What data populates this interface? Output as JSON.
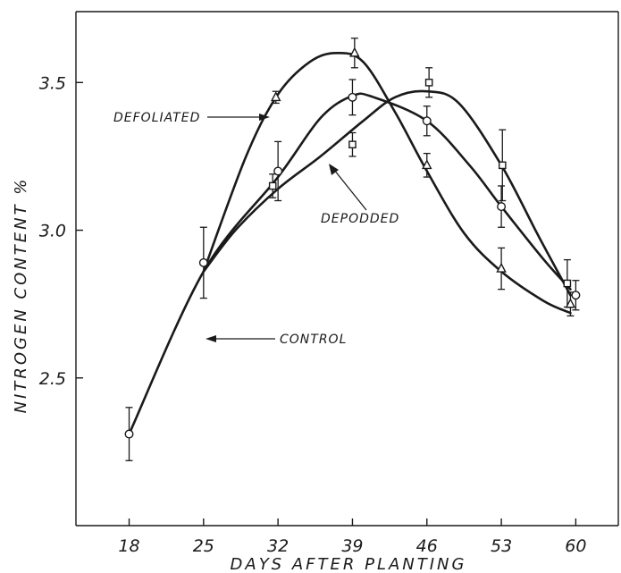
{
  "chart_data": {
    "type": "line",
    "xlabel": "DAYS AFTER PLANTING",
    "ylabel": "NITROGEN CONTENT %",
    "xlim": [
      13,
      64
    ],
    "ylim": [
      2.0,
      3.74
    ],
    "x_ticks": [
      18,
      25,
      32,
      39,
      46,
      53,
      60
    ],
    "y_ticks": [
      2.5,
      3.0,
      3.5
    ],
    "y_tick_labels": [
      "2.5",
      "3.0",
      "3.5"
    ],
    "grid": false,
    "series": [
      {
        "name": "CONTROL",
        "marker": "circle",
        "points": [
          {
            "x": 18,
            "y": 2.31,
            "err": 0.09
          },
          {
            "x": 25,
            "y": 2.89,
            "err": 0.12
          },
          {
            "x": 32,
            "y": 3.2,
            "err": 0.1
          },
          {
            "x": 39,
            "y": 3.45,
            "err": 0.06
          },
          {
            "x": 46,
            "y": 3.37,
            "err": 0.05
          },
          {
            "x": 53,
            "y": 3.08,
            "err": 0.07
          },
          {
            "x": 60,
            "y": 2.78,
            "err": 0.05
          }
        ],
        "curve": [
          [
            18,
            2.31
          ],
          [
            25,
            2.86
          ],
          [
            32,
            3.18
          ],
          [
            36,
            3.38
          ],
          [
            39,
            3.455
          ],
          [
            41,
            3.45
          ],
          [
            46,
            3.37
          ],
          [
            50,
            3.22
          ],
          [
            53,
            3.08
          ],
          [
            57,
            2.9
          ],
          [
            59.5,
            2.8
          ]
        ]
      },
      {
        "name": "DEFOLIATED",
        "marker": "triangle",
        "points": [
          {
            "x": 31.8,
            "y": 3.45,
            "err": 0.02
          },
          {
            "x": 39.2,
            "y": 3.6,
            "err": 0.05
          },
          {
            "x": 46,
            "y": 3.22,
            "err": 0.04
          },
          {
            "x": 53,
            "y": 2.87,
            "err": 0.07
          },
          {
            "x": 59.5,
            "y": 2.75,
            "err": 0.04
          }
        ],
        "curve": [
          [
            25,
            2.86
          ],
          [
            29,
            3.25
          ],
          [
            32,
            3.46
          ],
          [
            35,
            3.57
          ],
          [
            37.5,
            3.6
          ],
          [
            40,
            3.57
          ],
          [
            43,
            3.4
          ],
          [
            46,
            3.2
          ],
          [
            49.5,
            2.99
          ],
          [
            53,
            2.86
          ],
          [
            57,
            2.76
          ],
          [
            59.5,
            2.72
          ]
        ]
      },
      {
        "name": "DEPODDED",
        "marker": "square",
        "points": [
          {
            "x": 31.5,
            "y": 3.15,
            "err": 0.04
          },
          {
            "x": 39,
            "y": 3.29,
            "err": 0.04
          },
          {
            "x": 46.2,
            "y": 3.5,
            "err": 0.05
          },
          {
            "x": 53.1,
            "y": 3.22,
            "err": 0.12
          },
          {
            "x": 59.2,
            "y": 2.82,
            "err": 0.08
          }
        ],
        "curve": [
          [
            25,
            2.86
          ],
          [
            28,
            3.0
          ],
          [
            32,
            3.14
          ],
          [
            36,
            3.25
          ],
          [
            40,
            3.37
          ],
          [
            43,
            3.45
          ],
          [
            46,
            3.47
          ],
          [
            49,
            3.43
          ],
          [
            53,
            3.22
          ],
          [
            56.5,
            2.98
          ],
          [
            59.5,
            2.78
          ]
        ]
      }
    ],
    "annotations": [
      {
        "text": "DEFOLIATED",
        "series": "DEFOLIATED"
      },
      {
        "text": "DEPODDED",
        "series": "DEPODDED"
      },
      {
        "text": "CONTROL",
        "series": "CONTROL"
      }
    ]
  }
}
